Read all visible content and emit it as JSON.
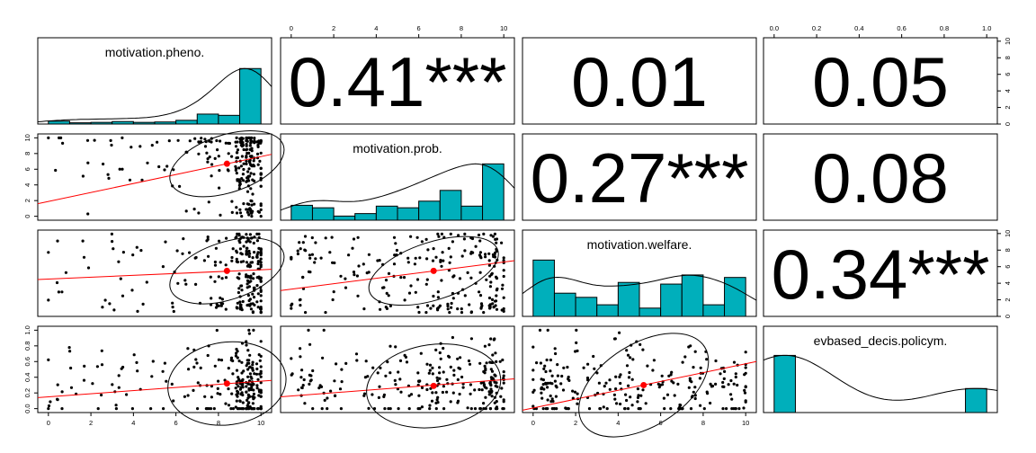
{
  "chart_data": {
    "type": "scatter-matrix",
    "variables": [
      "motivation.pheno.",
      "motivation.prob.",
      "motivation.welfare.",
      "evbased_decis.policym."
    ],
    "axis_ticks": {
      "motivation.pheno.": [
        "0",
        "2",
        "4",
        "6",
        "8",
        "10"
      ],
      "motivation.prob.": [
        "0",
        "2",
        "4",
        "6",
        "8",
        "10"
      ],
      "motivation.welfare.": [
        "0",
        "2",
        "4",
        "6",
        "8",
        "10"
      ],
      "evbased_decis.policym.": [
        "0.0",
        "0.2",
        "0.4",
        "0.6",
        "0.8",
        "1.0"
      ]
    },
    "correlations": [
      {
        "row": 1,
        "col": 2,
        "label": "0.41***"
      },
      {
        "row": 1,
        "col": 3,
        "label": "0.01"
      },
      {
        "row": 1,
        "col": 4,
        "label": "0.05"
      },
      {
        "row": 2,
        "col": 3,
        "label": "0.27***"
      },
      {
        "row": 2,
        "col": 4,
        "label": "0.08"
      },
      {
        "row": 3,
        "col": 4,
        "label": "0.34***"
      }
    ],
    "histograms": [
      {
        "variable": "motivation.pheno.",
        "range": [
          0,
          10
        ],
        "counts": [
          0.35,
          0.15,
          0.2,
          0.3,
          0.2,
          0.25,
          0.45,
          1.2,
          1.05,
          6.7
        ]
      },
      {
        "variable": "motivation.prob.",
        "range": [
          0,
          10
        ],
        "counts": [
          1.8,
          1.5,
          0.5,
          0.8,
          1.7,
          1.5,
          2.3,
          3.6,
          1.7,
          6.8
        ]
      },
      {
        "variable": "motivation.welfare.",
        "range": [
          0,
          10
        ],
        "counts": [
          6.8,
          2.8,
          2.3,
          1.4,
          4.1,
          1.0,
          3.9,
          5.0,
          1.4,
          4.7
        ]
      },
      {
        "variable": "evbased_decis.policym.",
        "range": [
          0,
          1
        ],
        "counts": [
          6.9,
          0,
          0,
          0,
          0,
          0,
          0,
          0,
          0,
          2.9
        ]
      }
    ],
    "hist_count_ticks": [
      "0",
      "2",
      "4",
      "6",
      "8",
      "10"
    ],
    "scatter_panels": [
      {
        "row": 2,
        "col": 1,
        "x": "motivation.pheno.",
        "y": "motivation.prob.",
        "mean": [
          8.4,
          6.7
        ],
        "fit": [
          [
            -0.5,
            1.6
          ],
          [
            10.5,
            7.9
          ]
        ]
      },
      {
        "row": 3,
        "col": 1,
        "x": "motivation.pheno.",
        "y": "motivation.welfare.",
        "mean": [
          8.4,
          5.3
        ],
        "fit": [
          [
            -0.5,
            4.2
          ],
          [
            10.5,
            5.5
          ]
        ]
      },
      {
        "row": 3,
        "col": 2,
        "x": "motivation.prob.",
        "y": "motivation.welfare.",
        "mean": [
          6.7,
          5.3
        ],
        "fit": [
          [
            -0.5,
            2.8
          ],
          [
            10.5,
            6.6
          ]
        ]
      },
      {
        "row": 4,
        "col": 1,
        "x": "motivation.pheno.",
        "y": "evbased_decis.policym.",
        "mean": [
          8.4,
          0.32
        ],
        "fit": [
          [
            -0.5,
            0.14
          ],
          [
            10.5,
            0.36
          ]
        ]
      },
      {
        "row": 4,
        "col": 2,
        "x": "motivation.prob.",
        "y": "evbased_decis.policym.",
        "mean": [
          6.7,
          0.29
        ],
        "fit": [
          [
            -0.5,
            0.15
          ],
          [
            10.5,
            0.38
          ]
        ]
      },
      {
        "row": 4,
        "col": 3,
        "x": "motivation.welfare.",
        "y": "evbased_decis.policym.",
        "mean": [
          5.2,
          0.3
        ],
        "fit": [
          [
            -0.5,
            -0.02
          ],
          [
            10.5,
            0.6
          ]
        ]
      }
    ],
    "colors": {
      "bars": "#00AFBB",
      "points": "#000000",
      "fit": "#FF0000",
      "ellipse": "#000000"
    },
    "grid": false,
    "legend": "none"
  }
}
